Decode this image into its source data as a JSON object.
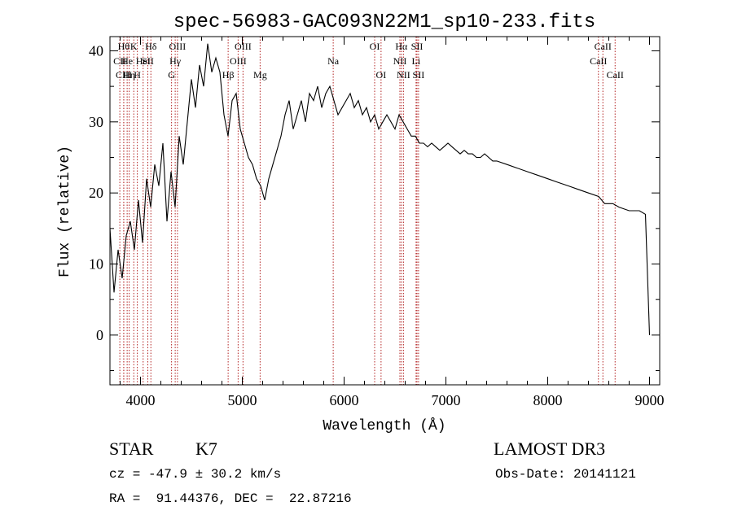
{
  "chart_data": {
    "type": "line",
    "title": "spec-56983-GAC093N22M1_sp10-233.fits",
    "xlabel": "Wavelength (Å)",
    "ylabel": "Flux (relative)",
    "xlim": [
      3700,
      9100
    ],
    "ylim": [
      -7,
      42
    ],
    "x_ticks": [
      4000,
      5000,
      6000,
      7000,
      8000,
      9000
    ],
    "y_ticks": [
      0,
      10,
      20,
      30,
      40
    ],
    "grid": false,
    "line_color": "#000000",
    "marker_color": "#b22222",
    "series": [
      {
        "x": [
          3700,
          3740,
          3780,
          3820,
          3860,
          3900,
          3940,
          3980,
          4020,
          4060,
          4100,
          4140,
          4180,
          4220,
          4260,
          4300,
          4340,
          4380,
          4420,
          4460,
          4500,
          4540,
          4580,
          4620,
          4660,
          4700,
          4740,
          4780,
          4820,
          4860,
          4900,
          4940,
          4980,
          5020,
          5060,
          5100,
          5140,
          5180,
          5220,
          5260,
          5300,
          5340,
          5380,
          5420,
          5460,
          5500,
          5540,
          5580,
          5620,
          5660,
          5700,
          5740,
          5780,
          5820,
          5860,
          5900,
          5940,
          5980,
          6020,
          6060,
          6100,
          6140,
          6180,
          6220,
          6260,
          6300,
          6340,
          6380,
          6420,
          6460,
          6500,
          6540,
          6580,
          6620,
          6660,
          6700,
          6740,
          6780,
          6820,
          6860,
          6900,
          6940,
          6980,
          7020,
          7060,
          7100,
          7140,
          7180,
          7220,
          7260,
          7300,
          7340,
          7380,
          7420,
          7460,
          7500,
          7600,
          7700,
          7800,
          7900,
          8000,
          8100,
          8200,
          8300,
          8400,
          8500,
          8560,
          8640,
          8700,
          8800,
          8900,
          8960,
          9000
        ],
        "y": [
          15,
          6,
          12,
          8,
          14,
          16,
          12,
          19,
          13,
          22,
          18,
          24,
          21,
          27,
          16,
          23,
          18,
          28,
          24,
          30,
          36,
          32,
          38,
          35,
          41,
          37,
          39,
          37,
          31,
          28,
          33,
          34,
          29,
          27,
          25,
          24,
          22,
          21,
          19,
          22,
          24,
          26,
          28,
          31,
          33,
          29,
          31,
          33,
          30,
          34,
          33,
          35,
          32,
          34,
          35,
          33,
          31,
          32,
          33,
          34,
          32,
          33,
          31,
          32,
          30,
          31,
          29,
          30,
          31,
          30,
          29,
          31,
          30,
          29,
          28,
          28,
          27,
          27,
          26.5,
          27,
          26.5,
          26,
          26.5,
          27,
          26.5,
          26,
          25.5,
          26,
          25.5,
          25.5,
          25,
          25,
          25.5,
          25,
          24.5,
          24.5,
          24,
          23.5,
          23,
          22.5,
          22,
          21.5,
          21,
          20.5,
          20,
          19.5,
          18.5,
          18.5,
          18,
          17.5,
          17.5,
          17,
          0
        ]
      }
    ],
    "lines": [
      {
        "x": 3797,
        "tier": 1,
        "label": "CII"
      },
      {
        "x": 3835,
        "tier": 0,
        "label": "Hθ"
      },
      {
        "x": 3836,
        "tier": 2,
        "label": "CIII"
      },
      {
        "x": 3869,
        "tier": 1,
        "label": "He"
      },
      {
        "x": 3889,
        "tier": 2,
        "label": "Hη"
      },
      {
        "x": 3934,
        "tier": 0,
        "label": "K"
      },
      {
        "x": 3969,
        "tier": 2,
        "label": "H"
      },
      {
        "x": 4026,
        "tier": 1,
        "label": "HeI"
      },
      {
        "x": 4072,
        "tier": 1,
        "label": "SII"
      },
      {
        "x": 4102,
        "tier": 0,
        "label": "Hδ"
      },
      {
        "x": 4305,
        "tier": 2,
        "label": "G"
      },
      {
        "x": 4341,
        "tier": 1,
        "label": "Hγ"
      },
      {
        "x": 4363,
        "tier": 0,
        "label": "OIII"
      },
      {
        "x": 4861,
        "tier": 2,
        "label": "Hβ"
      },
      {
        "x": 4959,
        "tier": 1,
        "label": "OIII"
      },
      {
        "x": 5007,
        "tier": 0,
        "label": "OIII"
      },
      {
        "x": 5175,
        "tier": 2,
        "label": "Mg"
      },
      {
        "x": 5893,
        "tier": 1,
        "label": "Na"
      },
      {
        "x": 6300,
        "tier": 0,
        "label": "OI"
      },
      {
        "x": 6363,
        "tier": 2,
        "label": "OI"
      },
      {
        "x": 6548,
        "tier": 1,
        "label": "NII"
      },
      {
        "x": 6563,
        "tier": 0,
        "label": "Hα"
      },
      {
        "x": 6583,
        "tier": 2,
        "label": "NII"
      },
      {
        "x": 6707,
        "tier": 1,
        "label": "Li"
      },
      {
        "x": 6716,
        "tier": 0,
        "label": "SII"
      },
      {
        "x": 6731,
        "tier": 2,
        "label": "SII"
      },
      {
        "x": 8498,
        "tier": 1,
        "label": "CaII"
      },
      {
        "x": 8542,
        "tier": 0,
        "label": "CaII"
      },
      {
        "x": 8662,
        "tier": 2,
        "label": "CaII"
      }
    ]
  },
  "info": {
    "class": "STAR",
    "subclass": "K7",
    "survey": "LAMOST DR3",
    "cz": "cz = -47.9 ± 30.2 km/s",
    "obs_date": "Obs-Date: 20141121",
    "radec": "RA =  91.44376, DEC =  22.87216"
  }
}
